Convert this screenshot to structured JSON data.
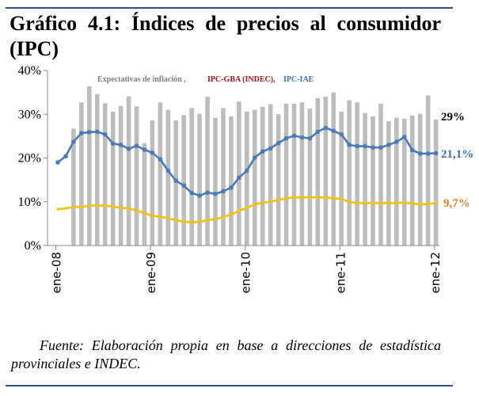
{
  "title": "Gráfico 4.1: Índices de precios al consumidor (IPC)",
  "source": "Fuente: Elaboración propia en base a direcciones de estadística provinciales e INDEC.",
  "chart_data": {
    "type": "bar+line",
    "title": "",
    "xlabel": "",
    "ylabel": "",
    "ylim": [
      0,
      40
    ],
    "yticks": [
      "0%",
      "10%",
      "20%",
      "30%",
      "40%"
    ],
    "xticks": [
      "ene-08",
      "ene-09",
      "ene-10",
      "ene-11",
      "ene-12"
    ],
    "x_start": "ene-08",
    "x_end": "ene-12",
    "frequency": "monthly",
    "grid": false,
    "legend_placement": "top",
    "legend": {
      "expectativas": "Expectativas de inflación ,",
      "indec": "IPC-GBA (INDEC),",
      "iae": "IPC-IAE"
    },
    "series": [
      {
        "name": "Expectativas de inflación",
        "kind": "bar",
        "color": "#bdbdbd",
        "values": [
          null,
          null,
          26.7,
          32.7,
          36.4,
          34.6,
          32.5,
          30.6,
          31.9,
          34.1,
          31.8,
          23.4,
          28.6,
          32.7,
          31.0,
          28.6,
          29.8,
          31.4,
          30.1,
          34.0,
          29.2,
          31.4,
          29.5,
          32.9,
          30.6,
          31.0,
          31.7,
          32.3,
          30.0,
          32.4,
          32.4,
          32.7,
          31.3,
          33.7,
          34.0,
          35.0,
          30.6,
          33.2,
          32.7,
          30.3,
          29.5,
          32.4,
          28.4,
          29.2,
          29.0,
          29.7,
          30.1,
          34.3,
          28.8
        ]
      },
      {
        "name": "IPC-GBA (INDEC)",
        "kind": "line",
        "color": "#f2c10f",
        "values": [
          8.3,
          8.5,
          8.8,
          8.8,
          9.1,
          9.2,
          9.1,
          8.9,
          8.6,
          8.5,
          8.0,
          7.4,
          6.8,
          6.6,
          6.2,
          5.8,
          5.4,
          5.3,
          5.4,
          5.8,
          6.0,
          6.5,
          7.1,
          7.9,
          8.6,
          9.4,
          9.8,
          10.0,
          10.4,
          10.8,
          11.0,
          11.0,
          11.0,
          11.0,
          11.0,
          10.8,
          10.6,
          10.0,
          9.7,
          9.7,
          9.7,
          9.7,
          9.7,
          9.7,
          9.8,
          9.6,
          9.4,
          9.5,
          9.7
        ]
      },
      {
        "name": "IPC-IAE",
        "kind": "line",
        "color": "#4a7ab8",
        "values": [
          19.0,
          20.4,
          23.7,
          25.7,
          25.9,
          26.0,
          25.4,
          23.3,
          23.0,
          22.1,
          22.8,
          21.9,
          21.2,
          19.7,
          17.1,
          14.8,
          13.7,
          12.0,
          11.4,
          12.1,
          11.8,
          12.4,
          13.2,
          15.5,
          17.1,
          20.1,
          21.5,
          22.2,
          23.4,
          24.5,
          25.1,
          24.7,
          24.5,
          26.0,
          26.9,
          26.2,
          25.4,
          23.0,
          22.7,
          22.7,
          22.4,
          22.4,
          23.0,
          23.7,
          24.8,
          21.8,
          21.0,
          21.0,
          21.1
        ]
      }
    ],
    "annotations": {
      "expectativas_last": "29%",
      "iae_last": "21,1%",
      "indec_last": "9,7%"
    },
    "annotation_colors": {
      "expectativas_last": "#000000",
      "iae_last": "#3f6ea8",
      "indec_last": "#d9822b"
    },
    "legend_colors": {
      "expectativas": "#7f7f7f",
      "indec": "#a0141e",
      "iae": "#3f6ea8"
    }
  }
}
